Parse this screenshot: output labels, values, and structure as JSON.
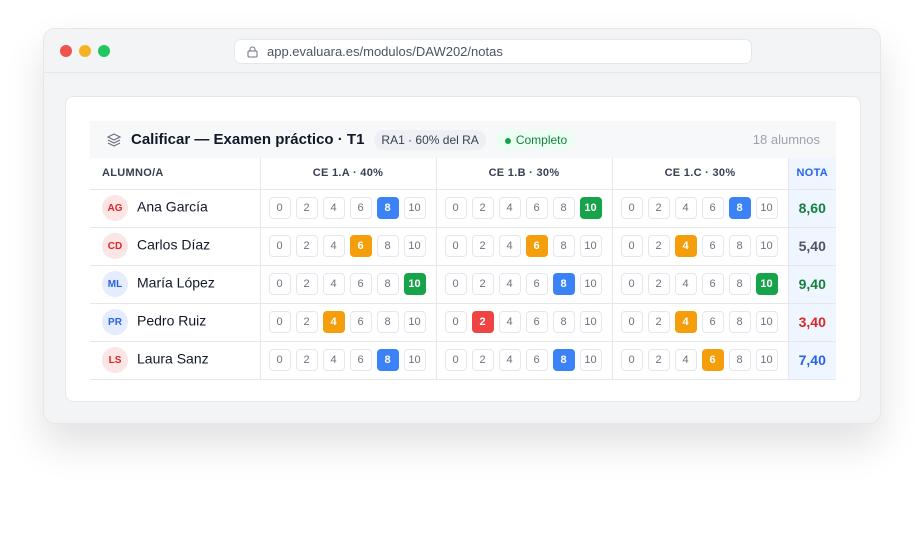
{
  "browser": {
    "url": "app.evaluara.es/modulos/DAW202/notas"
  },
  "header": {
    "title": "Calificar — Examen práctico · T1",
    "badge": "RA1 · 60% del RA",
    "status": "Completo",
    "count": "18 alumnos"
  },
  "table": {
    "columns": [
      "ALUMNO/A",
      "CE 1.A · 40%",
      "CE 1.B · 30%",
      "CE 1.C · 30%",
      "NOTA"
    ],
    "options": [
      0,
      2,
      4,
      6,
      8,
      10
    ],
    "rows": [
      {
        "initials": "AG",
        "name": "Ana García",
        "grades": [
          8,
          10,
          8
        ],
        "nota": "8,60",
        "nota_color": "#15803d",
        "avatar_color": "#dc2626"
      },
      {
        "initials": "CD",
        "name": "Carlos Díaz",
        "grades": [
          6,
          6,
          4
        ],
        "nota": "5,40",
        "nota_color": "#4b5563",
        "avatar_color": "#dc2626"
      },
      {
        "initials": "ML",
        "name": "María López",
        "grades": [
          10,
          8,
          10
        ],
        "nota": "9,40",
        "nota_color": "#15803d",
        "avatar_color": "#2563eb"
      },
      {
        "initials": "PR",
        "name": "Pedro Ruiz",
        "grades": [
          4,
          2,
          4
        ],
        "nota": "3,40",
        "nota_color": "#dc2626",
        "avatar_color": "#2563eb"
      },
      {
        "initials": "LS",
        "name": "Laura Sanz",
        "grades": [
          8,
          8,
          6
        ],
        "nota": "7,40",
        "nota_color": "#2563eb",
        "avatar_color": "#dc2626"
      }
    ]
  }
}
